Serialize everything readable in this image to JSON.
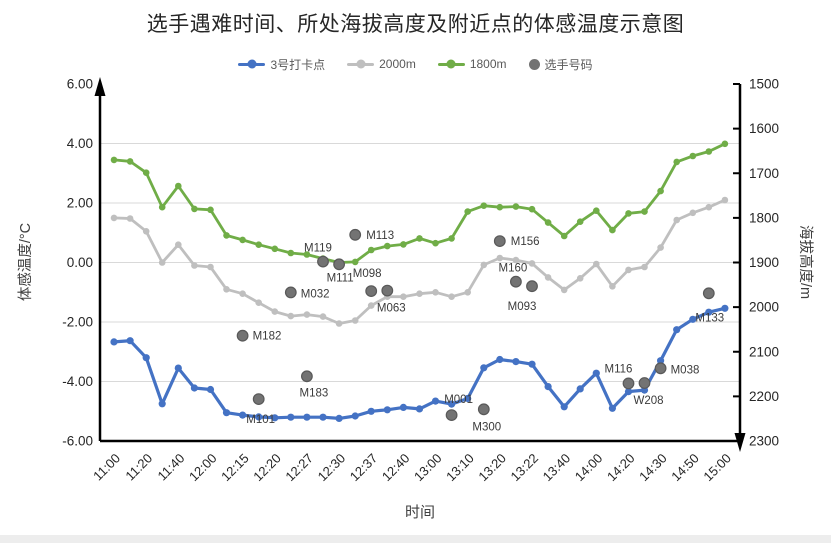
{
  "chart": {
    "title": "选手遇难时间、所处海拔高度及附近点的体感温度示意图",
    "xlabel": "时间",
    "ylabel_left": "体感温度/°C",
    "ylabel_right": "海拔高度/m"
  },
  "chart_data": {
    "type": "line",
    "title": "选手遇难时间、所处海拔高度及附近点的体感温度示意图",
    "xlabel": "时间",
    "grid": "horizontal",
    "legend_position": "top-center",
    "n_points": 39,
    "x_tick_labels": [
      "11:00",
      "11:20",
      "11:40",
      "12:00",
      "12:15",
      "12:20",
      "12:27",
      "12:30",
      "12:37",
      "12:40",
      "13:00",
      "13:10",
      "13:20",
      "13:22",
      "13:40",
      "14:00",
      "14:20",
      "14:30",
      "14:50",
      "15:00"
    ],
    "x_tick_every": 2,
    "y_left": {
      "label": "体感温度/°C",
      "min": -6,
      "max": 6,
      "ticks": [
        "6.00",
        "4.00",
        "2.00",
        "0.00",
        "-2.00",
        "-4.00",
        "-6.00"
      ]
    },
    "y_right": {
      "label": "海拔高度/m",
      "min": 1500,
      "max": 2300,
      "reversed": true,
      "ticks": [
        "1500",
        "1600",
        "1700",
        "1800",
        "1900",
        "2000",
        "2100",
        "2200",
        "2300"
      ]
    },
    "series": [
      {
        "name": "3号打卡点",
        "color": "#4472C4",
        "axis": "left",
        "marker": "circle",
        "values": [
          -2.67,
          -2.63,
          -3.2,
          -4.75,
          -3.55,
          -4.22,
          -4.27,
          -5.05,
          -5.13,
          -5.19,
          -5.22,
          -5.2,
          -5.2,
          -5.2,
          -5.24,
          -5.16,
          -5.0,
          -4.95,
          -4.87,
          -4.92,
          -4.66,
          -4.76,
          -4.57,
          -3.54,
          -3.26,
          -3.33,
          -3.42,
          -4.17,
          -4.85,
          -4.25,
          -3.72,
          -4.9,
          -4.34,
          -4.29,
          -3.3,
          -2.26,
          -1.91,
          -1.67,
          -1.54
        ]
      },
      {
        "name": "2000m",
        "color": "#BFBFBF",
        "axis": "left",
        "marker": "circle",
        "values": [
          1.5,
          1.48,
          1.05,
          0.0,
          0.6,
          -0.1,
          -0.15,
          -0.9,
          -1.05,
          -1.35,
          -1.65,
          -1.8,
          -1.75,
          -1.82,
          -2.05,
          -1.95,
          -1.45,
          -1.15,
          -1.15,
          -1.05,
          -1.0,
          -1.15,
          -1.0,
          -0.08,
          0.15,
          0.08,
          -0.03,
          -0.5,
          -0.92,
          -0.53,
          -0.05,
          -0.8,
          -0.25,
          -0.15,
          0.5,
          1.43,
          1.67,
          1.86,
          2.1
        ]
      },
      {
        "name": "1800m",
        "color": "#70AD47",
        "axis": "left",
        "marker": "circle",
        "values": [
          3.45,
          3.4,
          3.02,
          1.86,
          2.57,
          1.8,
          1.77,
          0.91,
          0.76,
          0.6,
          0.46,
          0.32,
          0.27,
          0.13,
          0.0,
          0.02,
          0.42,
          0.55,
          0.61,
          0.81,
          0.65,
          0.81,
          1.71,
          1.91,
          1.86,
          1.88,
          1.79,
          1.34,
          0.89,
          1.37,
          1.74,
          1.09,
          1.65,
          1.71,
          2.4,
          3.38,
          3.58,
          3.73,
          3.99
        ]
      }
    ],
    "scatter": {
      "name": "选手号码",
      "color": "#737373",
      "edge_color": "#595959",
      "axis": "right",
      "points": [
        {
          "label": "M182",
          "index": 8,
          "altitude": 2064,
          "label_anchor": "start",
          "label_dx": 10,
          "label_dy": 4
        },
        {
          "label": "M101",
          "index": 9,
          "altitude": 2206,
          "label_anchor": "middle",
          "label_dx": 2,
          "label_dy": 24
        },
        {
          "label": "M032",
          "index": 11,
          "altitude": 1967,
          "label_anchor": "start",
          "label_dx": 10,
          "label_dy": 5
        },
        {
          "label": "M183",
          "index": 12,
          "altitude": 2155,
          "label_anchor": "middle",
          "label_dx": 7,
          "label_dy": 20
        },
        {
          "label": "M119",
          "index": 13,
          "altitude": 1898,
          "label_anchor": "middle",
          "label_dx": -5,
          "label_dy": -10
        },
        {
          "label": "M111",
          "index": 14,
          "altitude": 1904,
          "label_anchor": "middle",
          "label_dx": 1,
          "label_dy": 17
        },
        {
          "label": "M113",
          "index": 15,
          "altitude": 1838,
          "label_anchor": "start",
          "label_dx": 11,
          "label_dy": 4
        },
        {
          "label": "M098",
          "index": 16,
          "altitude": 1964,
          "label_anchor": "middle",
          "label_dx": -4,
          "label_dy": -14
        },
        {
          "label": "M063",
          "index": 17,
          "altitude": 1963,
          "label_anchor": "middle",
          "label_dx": 4,
          "label_dy": 21
        },
        {
          "label": "M001",
          "index": 21,
          "altitude": 2242,
          "label_anchor": "middle",
          "label_dx": 7,
          "label_dy": -12
        },
        {
          "label": "M300",
          "index": 23,
          "altitude": 2229,
          "label_anchor": "middle",
          "label_dx": 3,
          "label_dy": 21
        },
        {
          "label": "M156",
          "index": 24,
          "altitude": 1852,
          "label_anchor": "start",
          "label_dx": 11,
          "label_dy": 4
        },
        {
          "label": "M160",
          "index": 25,
          "altitude": 1943,
          "label_anchor": "middle",
          "label_dx": -3,
          "label_dy": -10
        },
        {
          "label": "M093",
          "index": 26,
          "altitude": 1953,
          "label_anchor": "middle",
          "label_dx": -10,
          "label_dy": 24
        },
        {
          "label": "M116",
          "index": 32,
          "altitude": 2171,
          "label_anchor": "middle",
          "label_dx": -10,
          "label_dy": -11
        },
        {
          "label": "W208",
          "index": 33,
          "altitude": 2170,
          "label_anchor": "middle",
          "label_dx": 4,
          "label_dy": 21
        },
        {
          "label": "M038",
          "index": 34,
          "altitude": 2137,
          "label_anchor": "start",
          "label_dx": 10,
          "label_dy": 5
        },
        {
          "label": "M133",
          "index": 37,
          "altitude": 1969,
          "label_anchor": "middle",
          "label_dx": 1,
          "label_dy": 28
        }
      ]
    },
    "colors": {
      "grid": "#D9D9D9",
      "axis": "#000000",
      "tick_text": "#262626",
      "axis_title_text": "#404040",
      "legend_text": "#595959",
      "scatter_label_text": "#3b3b3b"
    }
  }
}
